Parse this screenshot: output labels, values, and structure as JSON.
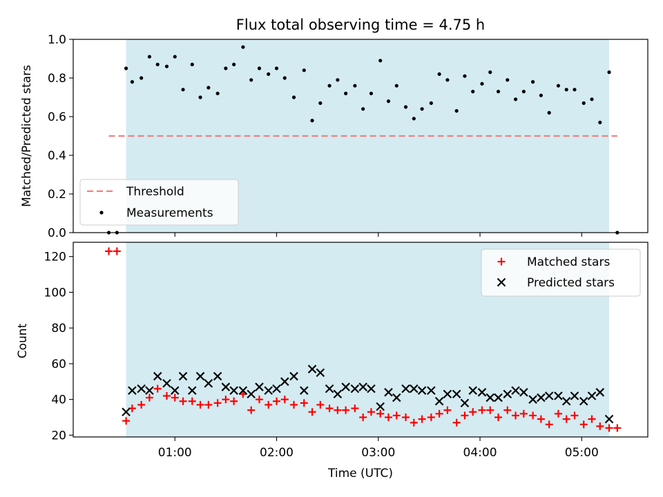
{
  "colors": {
    "shade": "#d4ebf1",
    "threshold": "#f08080",
    "matched": "#ff0000",
    "predicted": "#000000",
    "measurement": "#000000"
  },
  "chart_data": [
    {
      "type": "scatter",
      "title": "Flux total observing time = 4.75 h",
      "xlabel": "",
      "ylabel": "Matched/Predicted stars",
      "xlim_hours": [
        0.0,
        5.65
      ],
      "ylim": [
        0.0,
        1.0
      ],
      "yticks": [
        0.0,
        0.2,
        0.4,
        0.6,
        0.8,
        1.0
      ],
      "ytick_labels": [
        "0.0",
        "0.2",
        "0.4",
        "0.6",
        "0.8",
        "1.0"
      ],
      "xtick_hours": [
        1,
        2,
        3,
        4,
        5
      ],
      "shaded_span_hours": [
        0.52,
        5.27
      ],
      "threshold": {
        "name": "Threshold",
        "value": 0.5,
        "x_range_hours": [
          0.35,
          5.35
        ]
      },
      "legend": {
        "position": "lower-left",
        "entries": [
          "Threshold",
          "Measurements"
        ]
      },
      "series": [
        {
          "name": "Measurements",
          "x": [
            0.35,
            0.43,
            0.52,
            0.58,
            0.67,
            0.75,
            0.83,
            0.92,
            1.0,
            1.08,
            1.17,
            1.25,
            1.33,
            1.42,
            1.5,
            1.58,
            1.67,
            1.75,
            1.83,
            1.92,
            2.0,
            2.08,
            2.17,
            2.27,
            2.35,
            2.43,
            2.52,
            2.6,
            2.68,
            2.77,
            2.85,
            2.93,
            3.02,
            3.1,
            3.18,
            3.27,
            3.35,
            3.43,
            3.52,
            3.6,
            3.68,
            3.77,
            3.85,
            3.93,
            4.02,
            4.1,
            4.18,
            4.27,
            4.35,
            4.43,
            4.52,
            4.6,
            4.68,
            4.77,
            4.85,
            4.93,
            5.02,
            5.1,
            5.18,
            5.27,
            5.35
          ],
          "y": [
            0.0,
            0.0,
            0.85,
            0.78,
            0.8,
            0.91,
            0.87,
            0.86,
            0.91,
            0.74,
            0.87,
            0.7,
            0.75,
            0.72,
            0.85,
            0.87,
            0.96,
            0.79,
            0.85,
            0.82,
            0.85,
            0.8,
            0.7,
            0.84,
            0.58,
            0.67,
            0.76,
            0.79,
            0.72,
            0.76,
            0.64,
            0.72,
            0.89,
            0.68,
            0.76,
            0.65,
            0.59,
            0.64,
            0.67,
            0.82,
            0.79,
            0.63,
            0.81,
            0.73,
            0.77,
            0.83,
            0.73,
            0.79,
            0.69,
            0.73,
            0.78,
            0.71,
            0.62,
            0.76,
            0.74,
            0.74,
            0.67,
            0.69,
            0.57,
            0.83,
            0.0
          ]
        }
      ]
    },
    {
      "type": "scatter",
      "title": "",
      "xlabel": "Time (UTC)",
      "ylabel": "Count",
      "xlim_hours": [
        0.0,
        5.65
      ],
      "ylim": [
        19.0,
        128.0
      ],
      "yticks": [
        20,
        40,
        60,
        80,
        100,
        120
      ],
      "ytick_labels": [
        "20",
        "40",
        "60",
        "80",
        "100",
        "120"
      ],
      "xtick_hours": [
        1,
        2,
        3,
        4,
        5
      ],
      "xtick_labels": [
        "01:00",
        "02:00",
        "03:00",
        "04:00",
        "05:00"
      ],
      "shaded_span_hours": [
        0.52,
        5.27
      ],
      "legend": {
        "position": "top-right",
        "entries": [
          "Matched stars",
          "Predicted stars"
        ]
      },
      "series": [
        {
          "name": "Matched stars",
          "marker": "plus",
          "x": [
            0.35,
            0.43,
            0.52,
            0.58,
            0.67,
            0.75,
            0.83,
            0.92,
            1.0,
            1.08,
            1.17,
            1.25,
            1.33,
            1.42,
            1.5,
            1.58,
            1.67,
            1.75,
            1.83,
            1.92,
            2.0,
            2.08,
            2.17,
            2.27,
            2.35,
            2.43,
            2.52,
            2.6,
            2.68,
            2.77,
            2.85,
            2.93,
            3.02,
            3.1,
            3.18,
            3.27,
            3.35,
            3.43,
            3.52,
            3.6,
            3.68,
            3.77,
            3.85,
            3.93,
            4.02,
            4.1,
            4.18,
            4.27,
            4.35,
            4.43,
            4.52,
            4.6,
            4.68,
            4.77,
            4.85,
            4.93,
            5.02,
            5.1,
            5.18,
            5.27,
            5.35
          ],
          "y": [
            123,
            123,
            28,
            35,
            37,
            41,
            46,
            42,
            41,
            39,
            39,
            37,
            37,
            38,
            40,
            39,
            43,
            34,
            40,
            37,
            39,
            40,
            37,
            38,
            33,
            37,
            35,
            34,
            34,
            35,
            30,
            33,
            32,
            30,
            31,
            30,
            27,
            29,
            30,
            32,
            34,
            27,
            31,
            33,
            34,
            34,
            30,
            34,
            31,
            32,
            31,
            29,
            26,
            32,
            29,
            31,
            26,
            29,
            25,
            24,
            24
          ]
        },
        {
          "name": "Predicted stars",
          "marker": "x",
          "x": [
            0.52,
            0.58,
            0.67,
            0.75,
            0.83,
            0.92,
            1.0,
            1.08,
            1.17,
            1.25,
            1.33,
            1.42,
            1.5,
            1.58,
            1.67,
            1.75,
            1.83,
            1.92,
            2.0,
            2.08,
            2.17,
            2.27,
            2.35,
            2.43,
            2.52,
            2.6,
            2.68,
            2.77,
            2.85,
            2.93,
            3.02,
            3.1,
            3.18,
            3.27,
            3.35,
            3.43,
            3.52,
            3.6,
            3.68,
            3.77,
            3.85,
            3.93,
            4.02,
            4.1,
            4.18,
            4.27,
            4.35,
            4.43,
            4.52,
            4.6,
            4.68,
            4.77,
            4.85,
            4.93,
            5.02,
            5.1,
            5.18,
            5.27
          ],
          "y": [
            33,
            45,
            46,
            45,
            53,
            49,
            45,
            53,
            45,
            53,
            49,
            53,
            47,
            45,
            45,
            43,
            47,
            45,
            46,
            50,
            53,
            45,
            57,
            55,
            46,
            43,
            47,
            46,
            47,
            46,
            36,
            44,
            41,
            46,
            46,
            45,
            45,
            39,
            43,
            43,
            38,
            45,
            44,
            41,
            41,
            43,
            45,
            44,
            40,
            41,
            42,
            42,
            39,
            42,
            39,
            42,
            44,
            29
          ]
        }
      ]
    }
  ]
}
